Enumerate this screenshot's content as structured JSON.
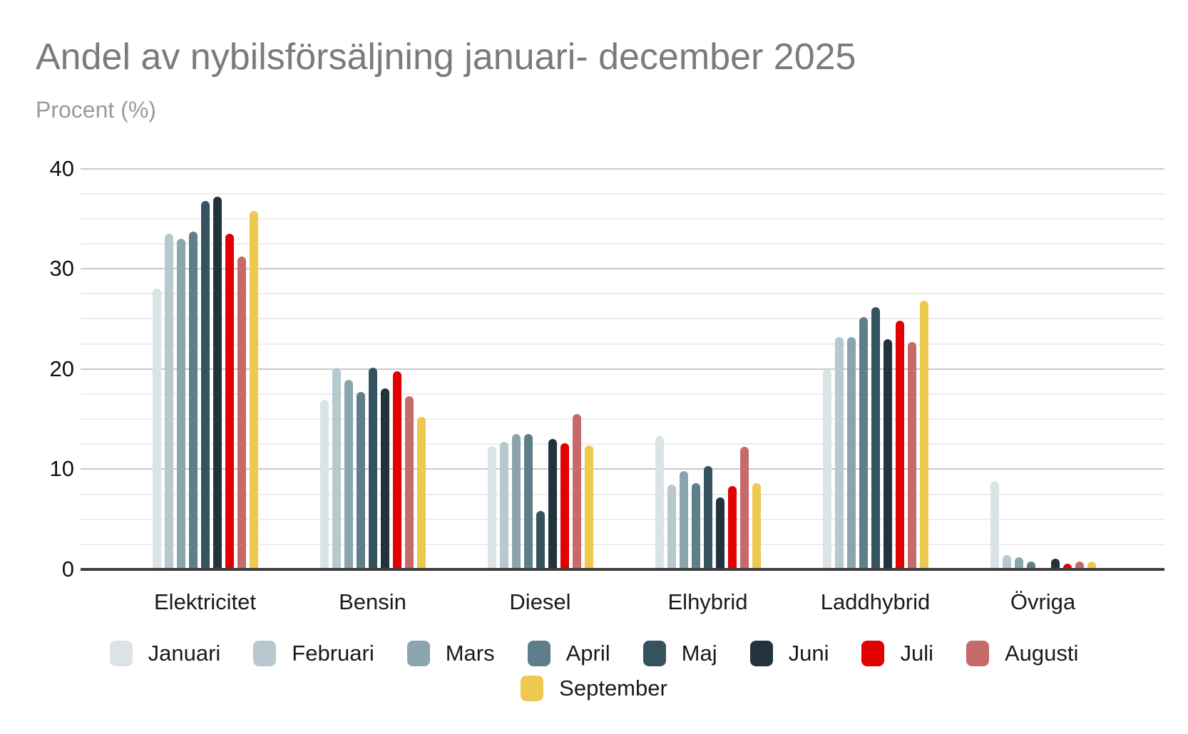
{
  "title": "Andel av nybilsförsäljning januari- december 2025",
  "subtitle": "Procent (%)",
  "chart_data": {
    "type": "bar",
    "title": "Andel av nybilsförsäljning januari- december 2025",
    "ylabel": "Procent (%)",
    "xlabel": "",
    "categories": [
      "Elektricitet",
      "Bensin",
      "Diesel",
      "Elhybrid",
      "Laddhybrid",
      "Övriga"
    ],
    "series": [
      {
        "name": "Januari",
        "color": "#dbe3e6",
        "values": [
          28.0,
          16.9,
          12.3,
          13.3,
          20.0,
          8.8
        ]
      },
      {
        "name": "Februari",
        "color": "#b7c8cf",
        "values": [
          33.5,
          20.1,
          12.7,
          8.5,
          23.2,
          1.4
        ]
      },
      {
        "name": "Mars",
        "color": "#8aa5ae",
        "values": [
          33.0,
          18.9,
          13.5,
          9.8,
          23.2,
          1.2
        ]
      },
      {
        "name": "April",
        "color": "#5e7e8a",
        "values": [
          33.7,
          17.7,
          13.5,
          8.6,
          25.2,
          0.8
        ]
      },
      {
        "name": "Maj",
        "color": "#34535f",
        "values": [
          36.8,
          20.1,
          5.8,
          10.3,
          26.2,
          0.0
        ]
      },
      {
        "name": "Juni",
        "color": "#21333d",
        "values": [
          37.2,
          18.1,
          13.0,
          7.2,
          23.0,
          1.1
        ]
      },
      {
        "name": "Juli",
        "color": "#e20000",
        "values": [
          33.5,
          19.8,
          12.6,
          8.3,
          24.8,
          0.6
        ]
      },
      {
        "name": "Augusti",
        "color": "#c66a6a",
        "values": [
          31.2,
          17.3,
          15.5,
          12.2,
          22.7,
          0.8
        ]
      },
      {
        "name": "September",
        "color": "#edc94f",
        "values": [
          35.8,
          15.2,
          12.4,
          8.6,
          26.8,
          0.8
        ]
      }
    ],
    "ylim": [
      0,
      40
    ],
    "yticks": [
      0,
      10,
      20,
      30,
      40
    ],
    "minor_gridline_step": 2.5,
    "grid": true,
    "legend_position": "bottom"
  }
}
